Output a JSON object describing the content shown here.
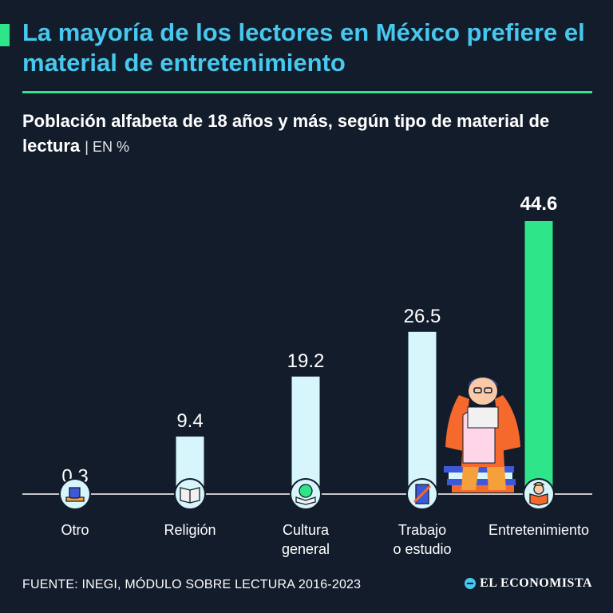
{
  "header": {
    "title": "La mayoría de los lectores en México prefiere el material de entretenimiento",
    "subtitle": "Población alfabeta de 18 años y más, según tipo de material de lectura",
    "unit": "| EN %"
  },
  "footer": {
    "source": "FUENTE: INEGI, MÓDULO SOBRE LECTURA 2016-2023",
    "brand": "EL ECONOMISTA"
  },
  "colors": {
    "background": "#131c2b",
    "title": "#47c8ee",
    "accent": "#2ee58a",
    "bar": "#d6f6fb",
    "bar_highlight": "#2ee58a"
  },
  "chart_data": {
    "type": "bar",
    "title": "Población alfabeta de 18 años y más, según tipo de material de lectura",
    "unit": "EN %",
    "categories": [
      "Otro",
      "Religión",
      "Cultura general",
      "Trabajo o estudio",
      "Entretenimiento"
    ],
    "category_lines": [
      [
        "Otro"
      ],
      [
        "Religión"
      ],
      [
        "Cultura",
        "general"
      ],
      [
        "Trabajo",
        "o estudio"
      ],
      [
        "Entretenimiento"
      ]
    ],
    "values": [
      0.3,
      9.4,
      19.2,
      26.5,
      44.6
    ],
    "value_labels": [
      "0.3",
      "9.4",
      "19.2",
      "26.5",
      "44.6"
    ],
    "highlight_index": 4,
    "icons": [
      "coffee-book-icon",
      "open-book-icon",
      "globe-book-icon",
      "study-book-icon",
      "child-reading-icon"
    ],
    "ylim": [
      0,
      44.6
    ],
    "grid": false,
    "legend": "none"
  }
}
